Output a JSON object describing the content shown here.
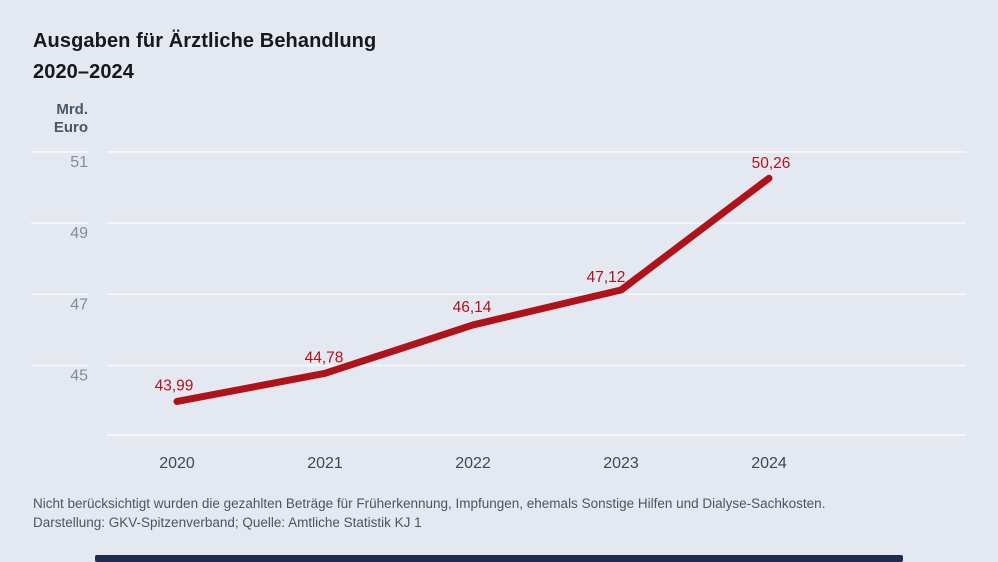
{
  "header": {
    "title_line1": "Ausgaben für Ärztliche Behandlung",
    "title_line2": "2020–2024"
  },
  "chart_data": {
    "type": "line",
    "title": "Ausgaben für Ärztliche Behandlung 2020–2024",
    "ylabel_line1": "Mrd.",
    "ylabel_line2": "Euro",
    "xlabel": "",
    "categories": [
      "2020",
      "2021",
      "2022",
      "2023",
      "2024"
    ],
    "values": [
      43.99,
      44.78,
      46.14,
      47.12,
      50.26
    ],
    "value_labels": [
      "43,99",
      "44,78",
      "46,14",
      "47,12",
      "50,26"
    ],
    "y_ticks": [
      45,
      47,
      49,
      51
    ],
    "ylim": [
      43.0,
      51.4
    ],
    "grid": true,
    "legend": "none"
  },
  "footer": {
    "note": "Nicht berücksichtigt wurden die gezahlten Beträge für Früherkennung, Impfungen, ehemals Sonstige Hilfen und Dialyse-Sachkosten.",
    "source": "Darstellung: GKV-Spitzenverband; Quelle: Amtliche Statistik KJ 1"
  },
  "colors": {
    "background": "#e4e8f0",
    "gridline": "#f9fafc",
    "line": "#b0121a",
    "value_label": "#b4121a",
    "title_text": "#15181d",
    "year_text": "#3e4855",
    "tick_text": "#858c96",
    "footer_text": "#4a5565",
    "unit_text": "#4a5766",
    "bottom_bar": "#1e2c50"
  }
}
